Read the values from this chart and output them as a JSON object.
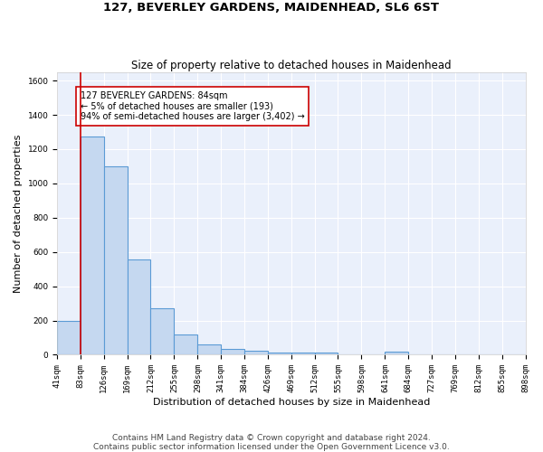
{
  "title": "127, BEVERLEY GARDENS, MAIDENHEAD, SL6 6ST",
  "subtitle": "Size of property relative to detached houses in Maidenhead",
  "xlabel": "Distribution of detached houses by size in Maidenhead",
  "ylabel": "Number of detached properties",
  "footer_line1": "Contains HM Land Registry data © Crown copyright and database right 2024.",
  "footer_line2": "Contains public sector information licensed under the Open Government Licence v3.0.",
  "bin_edges": [
    41,
    83,
    126,
    169,
    212,
    255,
    298,
    341,
    384,
    426,
    469,
    512,
    555,
    598,
    641,
    684,
    727,
    769,
    812,
    855,
    898
  ],
  "bar_heights": [
    200,
    1275,
    1100,
    555,
    270,
    120,
    58,
    32,
    22,
    15,
    15,
    15,
    0,
    0,
    20,
    0,
    0,
    0,
    0,
    0
  ],
  "bar_color": "#c5d8f0",
  "bar_edge_color": "#5b9bd5",
  "bar_edge_width": 0.8,
  "red_line_x": 83,
  "annotation_text": "127 BEVERLEY GARDENS: 84sqm\n← 5% of detached houses are smaller (193)\n94% of semi-detached houses are larger (3,402) →",
  "annotation_box_color": "#ffffff",
  "annotation_box_edge": "#cc0000",
  "ylim": [
    0,
    1650
  ],
  "yticks": [
    0,
    200,
    400,
    600,
    800,
    1000,
    1200,
    1400,
    1600
  ],
  "bg_color": "#eaf0fb",
  "grid_color": "#ffffff",
  "title_fontsize": 9.5,
  "subtitle_fontsize": 8.5,
  "ylabel_fontsize": 8,
  "xlabel_fontsize": 8,
  "tick_fontsize": 6.5,
  "annot_fontsize": 7,
  "footer_fontsize": 6.5
}
